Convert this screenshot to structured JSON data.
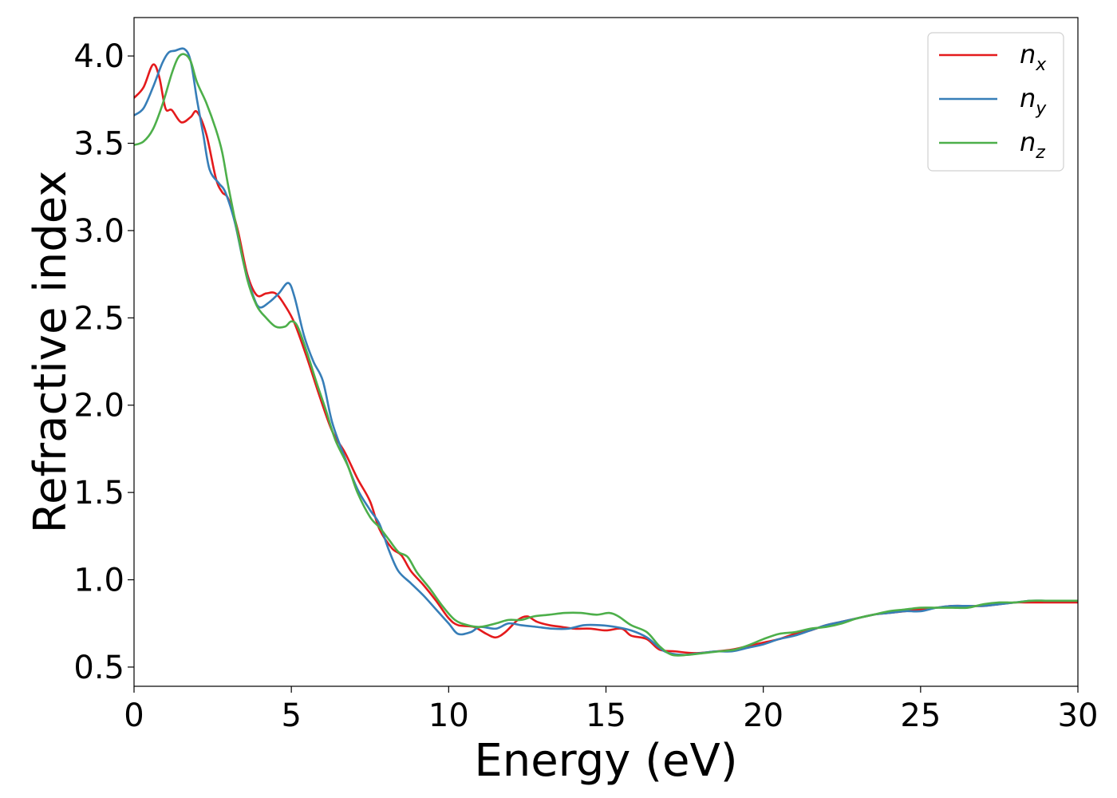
{
  "chart_data": {
    "type": "line",
    "title": "",
    "xlabel": "Energy (eV)",
    "ylabel": "Refractive index",
    "xlim": [
      0,
      30
    ],
    "ylim": [
      0.39,
      4.22
    ],
    "xticks": [
      0,
      5,
      10,
      15,
      20,
      25,
      30
    ],
    "xtick_labels": [
      "0",
      "5",
      "10",
      "15",
      "20",
      "25",
      "30"
    ],
    "yticks": [
      0.5,
      1.0,
      1.5,
      2.0,
      2.5,
      3.0,
      3.5,
      4.0
    ],
    "ytick_labels": [
      "0.5",
      "1.0",
      "1.5",
      "2.0",
      "2.5",
      "3.0",
      "3.5",
      "4.0"
    ],
    "grid": false,
    "legend_position": "top-right",
    "series": [
      {
        "name": "n_x",
        "label_base": "n",
        "label_sub": "x",
        "color": "#e41a1c",
        "points": [
          [
            0,
            3.76
          ],
          [
            0.3,
            3.82
          ],
          [
            0.6,
            3.95
          ],
          [
            0.8,
            3.88
          ],
          [
            1.0,
            3.7
          ],
          [
            1.2,
            3.69
          ],
          [
            1.5,
            3.62
          ],
          [
            1.8,
            3.65
          ],
          [
            2.0,
            3.68
          ],
          [
            2.3,
            3.55
          ],
          [
            2.6,
            3.3
          ],
          [
            2.8,
            3.22
          ],
          [
            3.0,
            3.18
          ],
          [
            3.3,
            3.0
          ],
          [
            3.6,
            2.75
          ],
          [
            3.9,
            2.63
          ],
          [
            4.2,
            2.64
          ],
          [
            4.5,
            2.64
          ],
          [
            4.8,
            2.57
          ],
          [
            5.1,
            2.47
          ],
          [
            5.5,
            2.27
          ],
          [
            5.9,
            2.05
          ],
          [
            6.3,
            1.85
          ],
          [
            6.7,
            1.73
          ],
          [
            7.1,
            1.58
          ],
          [
            7.5,
            1.45
          ],
          [
            7.8,
            1.29
          ],
          [
            8.2,
            1.18
          ],
          [
            8.5,
            1.14
          ],
          [
            8.8,
            1.05
          ],
          [
            9.2,
            0.97
          ],
          [
            9.6,
            0.88
          ],
          [
            10.0,
            0.78
          ],
          [
            10.3,
            0.74
          ],
          [
            10.8,
            0.73
          ],
          [
            11.2,
            0.69
          ],
          [
            11.5,
            0.67
          ],
          [
            11.8,
            0.7
          ],
          [
            12.2,
            0.77
          ],
          [
            12.5,
            0.79
          ],
          [
            12.8,
            0.76
          ],
          [
            13.2,
            0.74
          ],
          [
            13.6,
            0.73
          ],
          [
            14.0,
            0.72
          ],
          [
            14.5,
            0.72
          ],
          [
            15.0,
            0.71
          ],
          [
            15.5,
            0.72
          ],
          [
            15.8,
            0.68
          ],
          [
            16.3,
            0.66
          ],
          [
            16.7,
            0.6
          ],
          [
            17.2,
            0.59
          ],
          [
            17.8,
            0.58
          ],
          [
            18.5,
            0.59
          ],
          [
            19.0,
            0.6
          ],
          [
            19.5,
            0.62
          ],
          [
            20.0,
            0.64
          ],
          [
            20.5,
            0.66
          ],
          [
            21.0,
            0.69
          ],
          [
            21.5,
            0.71
          ],
          [
            22.0,
            0.74
          ],
          [
            22.5,
            0.76
          ],
          [
            23.0,
            0.78
          ],
          [
            23.5,
            0.8
          ],
          [
            24.0,
            0.81
          ],
          [
            24.5,
            0.82
          ],
          [
            25.0,
            0.83
          ],
          [
            25.5,
            0.84
          ],
          [
            26.0,
            0.85
          ],
          [
            26.5,
            0.85
          ],
          [
            27.0,
            0.85
          ],
          [
            27.5,
            0.86
          ],
          [
            28.0,
            0.87
          ],
          [
            28.5,
            0.87
          ],
          [
            29.0,
            0.87
          ],
          [
            29.5,
            0.87
          ],
          [
            30.0,
            0.87
          ]
        ]
      },
      {
        "name": "n_y",
        "label_base": "n",
        "label_sub": "y",
        "color": "#377eb8",
        "points": [
          [
            0,
            3.66
          ],
          [
            0.3,
            3.7
          ],
          [
            0.6,
            3.82
          ],
          [
            0.9,
            3.96
          ],
          [
            1.1,
            4.02
          ],
          [
            1.3,
            4.03
          ],
          [
            1.6,
            4.04
          ],
          [
            1.8,
            3.97
          ],
          [
            2.0,
            3.75
          ],
          [
            2.2,
            3.55
          ],
          [
            2.4,
            3.35
          ],
          [
            2.7,
            3.27
          ],
          [
            2.9,
            3.22
          ],
          [
            3.2,
            3.05
          ],
          [
            3.5,
            2.8
          ],
          [
            3.8,
            2.62
          ],
          [
            4.0,
            2.56
          ],
          [
            4.3,
            2.59
          ],
          [
            4.6,
            2.64
          ],
          [
            4.9,
            2.7
          ],
          [
            5.1,
            2.62
          ],
          [
            5.4,
            2.4
          ],
          [
            5.7,
            2.25
          ],
          [
            6.0,
            2.14
          ],
          [
            6.3,
            1.9
          ],
          [
            6.7,
            1.7
          ],
          [
            7.1,
            1.52
          ],
          [
            7.5,
            1.4
          ],
          [
            7.8,
            1.32
          ],
          [
            8.1,
            1.17
          ],
          [
            8.4,
            1.05
          ],
          [
            8.8,
            0.98
          ],
          [
            9.2,
            0.91
          ],
          [
            9.6,
            0.83
          ],
          [
            10.0,
            0.75
          ],
          [
            10.3,
            0.69
          ],
          [
            10.7,
            0.7
          ],
          [
            11.0,
            0.73
          ],
          [
            11.5,
            0.72
          ],
          [
            11.9,
            0.75
          ],
          [
            12.3,
            0.74
          ],
          [
            12.8,
            0.73
          ],
          [
            13.3,
            0.72
          ],
          [
            13.8,
            0.72
          ],
          [
            14.3,
            0.74
          ],
          [
            14.8,
            0.74
          ],
          [
            15.3,
            0.73
          ],
          [
            15.8,
            0.71
          ],
          [
            16.3,
            0.67
          ],
          [
            16.7,
            0.61
          ],
          [
            17.0,
            0.58
          ],
          [
            17.5,
            0.57
          ],
          [
            18.0,
            0.58
          ],
          [
            18.5,
            0.59
          ],
          [
            19.0,
            0.59
          ],
          [
            19.5,
            0.61
          ],
          [
            20.0,
            0.63
          ],
          [
            20.5,
            0.66
          ],
          [
            21.0,
            0.68
          ],
          [
            21.5,
            0.71
          ],
          [
            22.0,
            0.74
          ],
          [
            22.5,
            0.76
          ],
          [
            23.0,
            0.78
          ],
          [
            23.5,
            0.8
          ],
          [
            24.0,
            0.81
          ],
          [
            24.5,
            0.82
          ],
          [
            25.0,
            0.82
          ],
          [
            25.5,
            0.84
          ],
          [
            26.0,
            0.85
          ],
          [
            26.5,
            0.85
          ],
          [
            27.0,
            0.85
          ],
          [
            27.5,
            0.86
          ],
          [
            28.0,
            0.87
          ],
          [
            28.5,
            0.88
          ],
          [
            29.0,
            0.88
          ],
          [
            29.5,
            0.88
          ],
          [
            30.0,
            0.88
          ]
        ]
      },
      {
        "name": "n_z",
        "label_base": "n",
        "label_sub": "z",
        "color": "#4daf4a",
        "points": [
          [
            0,
            3.49
          ],
          [
            0.3,
            3.51
          ],
          [
            0.6,
            3.58
          ],
          [
            0.9,
            3.72
          ],
          [
            1.2,
            3.9
          ],
          [
            1.4,
            3.99
          ],
          [
            1.6,
            4.01
          ],
          [
            1.8,
            3.97
          ],
          [
            2.0,
            3.85
          ],
          [
            2.3,
            3.73
          ],
          [
            2.6,
            3.58
          ],
          [
            2.8,
            3.45
          ],
          [
            3.0,
            3.25
          ],
          [
            3.3,
            2.98
          ],
          [
            3.6,
            2.72
          ],
          [
            3.9,
            2.57
          ],
          [
            4.2,
            2.5
          ],
          [
            4.5,
            2.45
          ],
          [
            4.8,
            2.45
          ],
          [
            5.0,
            2.48
          ],
          [
            5.2,
            2.45
          ],
          [
            5.5,
            2.3
          ],
          [
            5.8,
            2.13
          ],
          [
            6.1,
            1.97
          ],
          [
            6.4,
            1.8
          ],
          [
            6.8,
            1.65
          ],
          [
            7.1,
            1.5
          ],
          [
            7.5,
            1.36
          ],
          [
            7.8,
            1.3
          ],
          [
            8.1,
            1.23
          ],
          [
            8.4,
            1.16
          ],
          [
            8.7,
            1.13
          ],
          [
            9.0,
            1.04
          ],
          [
            9.4,
            0.95
          ],
          [
            9.8,
            0.85
          ],
          [
            10.2,
            0.77
          ],
          [
            10.6,
            0.74
          ],
          [
            11.0,
            0.73
          ],
          [
            11.5,
            0.75
          ],
          [
            11.9,
            0.77
          ],
          [
            12.3,
            0.77
          ],
          [
            12.7,
            0.79
          ],
          [
            13.2,
            0.8
          ],
          [
            13.7,
            0.81
          ],
          [
            14.2,
            0.81
          ],
          [
            14.7,
            0.8
          ],
          [
            15.1,
            0.81
          ],
          [
            15.4,
            0.79
          ],
          [
            15.8,
            0.74
          ],
          [
            16.3,
            0.7
          ],
          [
            16.7,
            0.62
          ],
          [
            17.1,
            0.57
          ],
          [
            17.6,
            0.57
          ],
          [
            18.1,
            0.58
          ],
          [
            18.6,
            0.59
          ],
          [
            19.1,
            0.6
          ],
          [
            19.6,
            0.63
          ],
          [
            20.0,
            0.66
          ],
          [
            20.5,
            0.69
          ],
          [
            21.0,
            0.7
          ],
          [
            21.5,
            0.72
          ],
          [
            22.0,
            0.73
          ],
          [
            22.5,
            0.75
          ],
          [
            23.0,
            0.78
          ],
          [
            23.5,
            0.8
          ],
          [
            24.0,
            0.82
          ],
          [
            24.5,
            0.83
          ],
          [
            25.0,
            0.84
          ],
          [
            25.5,
            0.84
          ],
          [
            26.0,
            0.84
          ],
          [
            26.5,
            0.84
          ],
          [
            27.0,
            0.86
          ],
          [
            27.5,
            0.87
          ],
          [
            28.0,
            0.87
          ],
          [
            28.5,
            0.88
          ],
          [
            29.0,
            0.88
          ],
          [
            29.5,
            0.88
          ],
          [
            30.0,
            0.88
          ]
        ]
      }
    ]
  }
}
